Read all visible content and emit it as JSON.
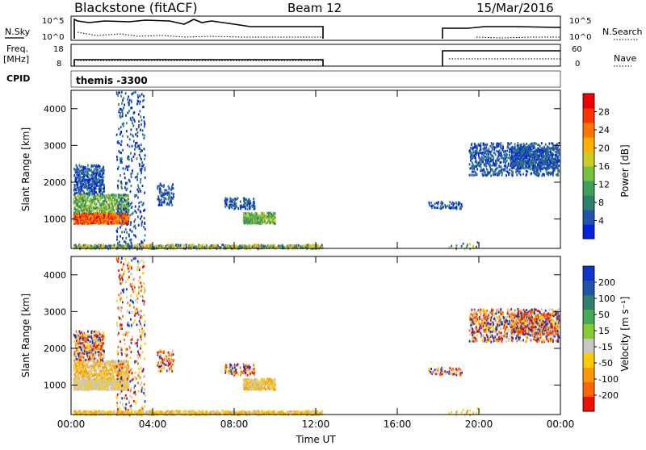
{
  "header": {
    "station": "Blackstone (fitACF)",
    "beam": "Beam 12",
    "date": "15/Mar/2016"
  },
  "aux_labels": {
    "nsky": "N.Sky",
    "nsky_ticks": [
      "10^5",
      "10^0"
    ],
    "freq": "Freq.",
    "freq_unit": "[MHz]",
    "freq_ticks": [
      "18",
      "8"
    ],
    "cpid": "CPID",
    "cpid_value": "themis -3300",
    "nsearch": "N.Search",
    "nsearch_ticks": [
      "10^5",
      "10^0"
    ],
    "nave": "Nave",
    "nave_ticks": [
      "60",
      "0"
    ]
  },
  "chart_data": [
    {
      "type": "heatmap",
      "name": "power",
      "ylabel": "Slant Range [km]",
      "xlabel": "",
      "x_ticks": [
        "00:00",
        "04:00",
        "08:00",
        "12:00",
        "16:00",
        "20:00",
        "00:00"
      ],
      "y_ticks": [
        1000,
        2000,
        3000,
        4000
      ],
      "ylim": [
        200,
        4500
      ],
      "xlim_hours": [
        0,
        24
      ],
      "colorbar_label": "Power [dB]",
      "colorbar_ticks": [
        4,
        8,
        12,
        16,
        20,
        24,
        28
      ],
      "colorbar_colors": [
        "#0022dd",
        "#2255aa",
        "#2f7f6f",
        "#3fa05a",
        "#77c040",
        "#cccc22",
        "#ffb000",
        "#ff7700",
        "#ff3300",
        "#ee0000"
      ]
    },
    {
      "type": "heatmap",
      "name": "velocity",
      "ylabel": "Slant Range [km]",
      "xlabel": "Time UT",
      "x_ticks": [
        "00:00",
        "04:00",
        "08:00",
        "12:00",
        "16:00",
        "20:00",
        "00:00"
      ],
      "y_ticks": [
        1000,
        2000,
        3000,
        4000
      ],
      "ylim": [
        200,
        4500
      ],
      "xlim_hours": [
        0,
        24
      ],
      "colorbar_label": "Velocity [m s⁻¹]",
      "colorbar_ticks": [
        200,
        100,
        50,
        15,
        -15,
        -50,
        -100,
        -200
      ],
      "colorbar_colors": [
        "#1133cc",
        "#2255aa",
        "#2e7e6e",
        "#44aa55",
        "#88cc33",
        "#c8c8c0",
        "#ffcc00",
        "#ff9900",
        "#ff6600",
        "#ee1100"
      ]
    }
  ]
}
